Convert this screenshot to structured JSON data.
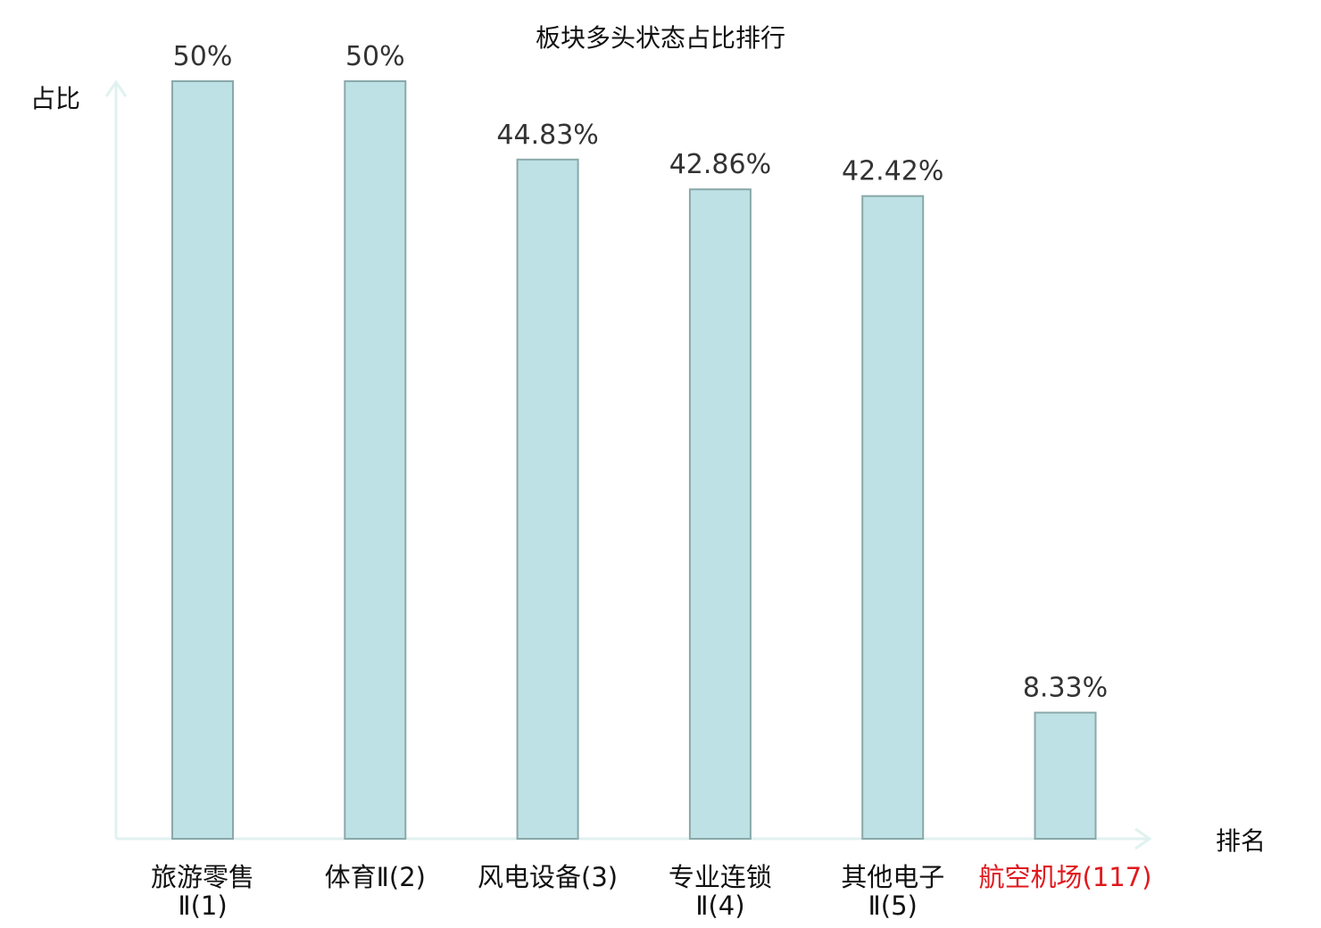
{
  "chart_data": {
    "type": "bar",
    "title": "板块多头状态占比排行",
    "ylabel": "占比",
    "xlabel": "排名",
    "ylim": [
      0,
      50
    ],
    "grid": false,
    "legend": "none",
    "bar_color": "#bde1e4",
    "bar_edge_color": "#8aa8aa",
    "axis_color": "#e0f2ef",
    "highlight_color": "#e0191e",
    "categories": [
      {
        "lines": [
          "旅游零售",
          "Ⅱ(1)"
        ],
        "highlight": false
      },
      {
        "lines": [
          "体育Ⅱ(2)"
        ],
        "highlight": false
      },
      {
        "lines": [
          "风电设备(3)"
        ],
        "highlight": false
      },
      {
        "lines": [
          "专业连锁",
          "Ⅱ(4)"
        ],
        "highlight": false
      },
      {
        "lines": [
          "其他电子",
          "Ⅱ(5)"
        ],
        "highlight": false
      },
      {
        "lines": [
          "航空机场(117)"
        ],
        "highlight": true
      }
    ],
    "values": [
      50,
      50,
      44.83,
      42.86,
      42.42,
      8.33
    ],
    "value_labels": [
      "50%",
      "50%",
      "44.83%",
      "42.86%",
      "42.42%",
      "8.33%"
    ]
  }
}
